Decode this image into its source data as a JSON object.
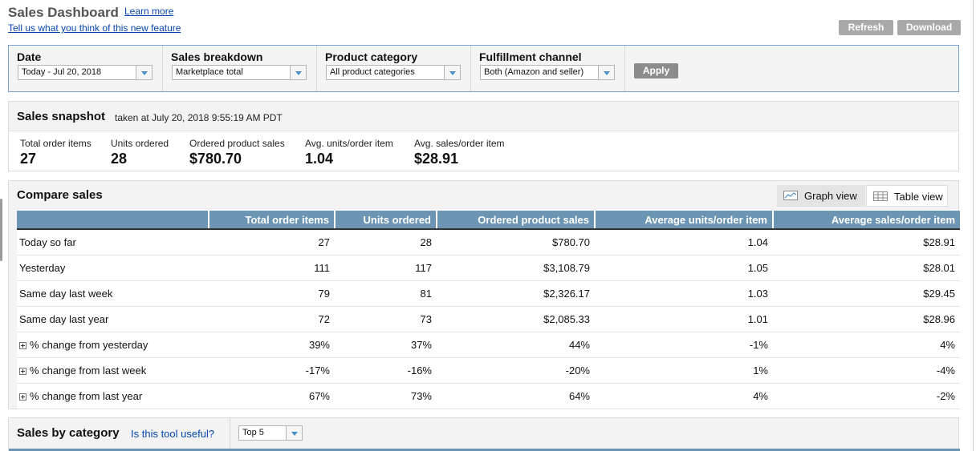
{
  "header": {
    "title": "Sales Dashboard",
    "learn_more": "Learn more",
    "feedback_link": "Tell us what you think of this new feature",
    "refresh_label": "Refresh",
    "download_label": "Download"
  },
  "filters": {
    "date": {
      "label": "Date",
      "value": "Today - Jul 20, 2018"
    },
    "sales_breakdown": {
      "label": "Sales breakdown",
      "value": "Marketplace total"
    },
    "product_category": {
      "label": "Product category",
      "value": "All product categories"
    },
    "fulfillment_channel": {
      "label": "Fulfillment channel",
      "value": "Both (Amazon and seller)"
    },
    "apply_label": "Apply"
  },
  "snapshot": {
    "title": "Sales snapshot",
    "subtitle": "taken at July 20, 2018 9:55:19 AM PDT",
    "metrics": [
      {
        "label": "Total order items",
        "value": "27"
      },
      {
        "label": "Units ordered",
        "value": "28"
      },
      {
        "label": "Ordered product sales",
        "value": "$780.70"
      },
      {
        "label": "Avg. units/order item",
        "value": "1.04"
      },
      {
        "label": "Avg. sales/order item",
        "value": "$28.91"
      }
    ]
  },
  "compare": {
    "title": "Compare sales",
    "graph_view": "Graph view",
    "table_view": "Table view",
    "columns": [
      "",
      "Total order items",
      "Units ordered",
      "Ordered product sales",
      "Average units/order item",
      "Average sales/order item"
    ],
    "rows": [
      {
        "label": "Today so far",
        "cells": [
          "27",
          "28",
          "$780.70",
          "1.04",
          "$28.91"
        ]
      },
      {
        "label": "Yesterday",
        "cells": [
          "111",
          "117",
          "$3,108.79",
          "1.05",
          "$28.01"
        ]
      },
      {
        "label": "Same day last week",
        "cells": [
          "79",
          "81",
          "$2,326.17",
          "1.03",
          "$29.45"
        ]
      },
      {
        "label": "Same day last year",
        "cells": [
          "72",
          "73",
          "$2,085.33",
          "1.01",
          "$28.96"
        ]
      }
    ],
    "change_rows": [
      {
        "label": "% change from yesterday",
        "cells": [
          "39%",
          "37%",
          "44%",
          "-1%",
          "4%"
        ]
      },
      {
        "label": "% change from last week",
        "cells": [
          "-17%",
          "-16%",
          "-20%",
          "1%",
          "-4%"
        ]
      },
      {
        "label": "% change from last year",
        "cells": [
          "67%",
          "73%",
          "64%",
          "4%",
          "-2%"
        ]
      }
    ],
    "colors": {
      "positive": "#1e8a1e",
      "negative": "#e02020",
      "header": "#6c95b3"
    }
  },
  "category": {
    "title": "Sales by category",
    "useful_link": "Is this tool useful?",
    "top_select": "Top 5"
  }
}
